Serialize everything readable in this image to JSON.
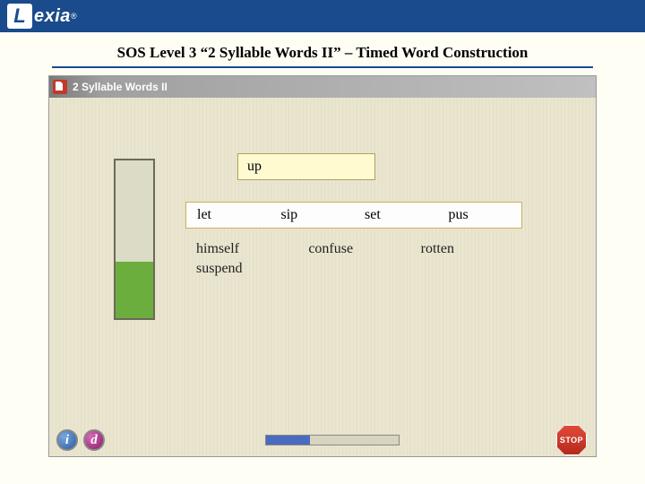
{
  "colors": {
    "header_bg": "#1a4b8c",
    "page_bg": "#fffef4",
    "canvas_bg": "#eae5cf",
    "progress_fill": "#6cae3d",
    "progress_empty": "#dcdbc5",
    "target_bg": "#fffad0",
    "choice_bg": "#fdfdfd",
    "slider_fill": "#4a6bbf",
    "stop_bg": "#e24a3b"
  },
  "logo": {
    "mark": "L",
    "text": "exia",
    "registered": "®"
  },
  "slide": {
    "title": "SOS Level 3 “2 Syllable Words II” – Timed Word Construction"
  },
  "window": {
    "title": "2 Syllable Words II"
  },
  "progress": {
    "percent": 36
  },
  "target": {
    "syllable": "up"
  },
  "choices": [
    "let",
    "sip",
    "set",
    "pus"
  ],
  "words": {
    "rows": [
      [
        "himself",
        "confuse",
        "rotten"
      ],
      [
        "suspend",
        "",
        ""
      ]
    ]
  },
  "footer": {
    "info_label": "i",
    "demo_label": "d",
    "slider_percent": 33,
    "stop_label": "STOP"
  }
}
